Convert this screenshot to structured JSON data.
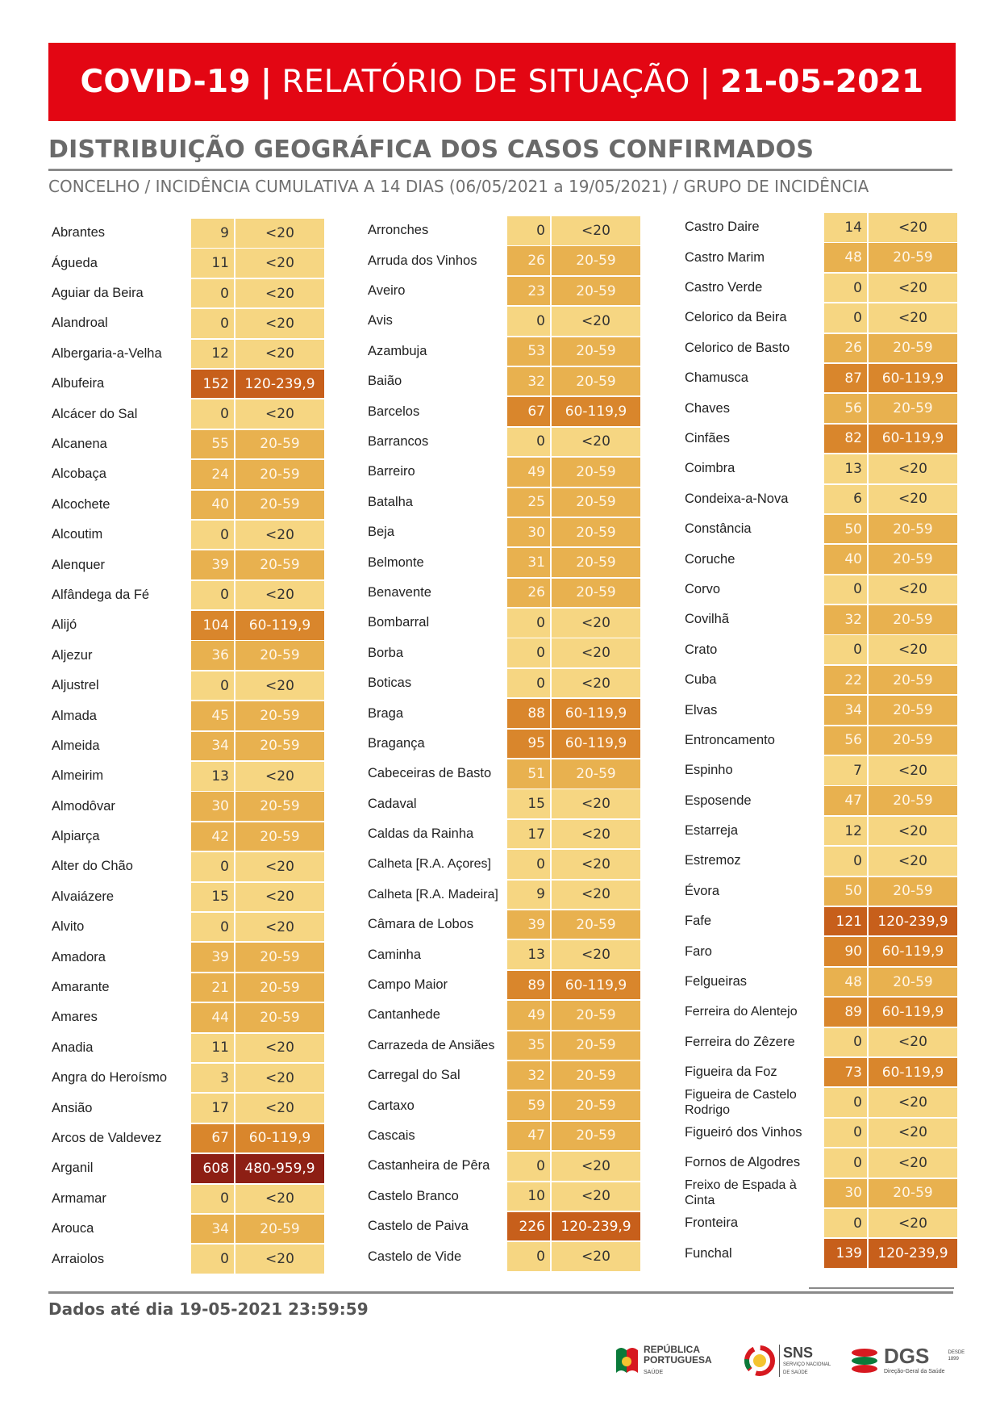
{
  "header": {
    "covid": "COVID-19",
    "sep1": "|",
    "report": "RELATÓRIO DE SITUAÇÃO",
    "sep2": "|",
    "date": "21-05-2021"
  },
  "section_title": "DISTRIBUIÇÃO GEOGRÁFICA DOS CASOS CONFIRMADOS",
  "subtitle": "CONCELHO / INCIDÊNCIA CUMULATIVA A 14 DIAS (06/05/2021 a 19/05/2021) / GRUPO DE INCIDÊNCIA",
  "group_colors": {
    "<20": "#f6d682",
    "20-59": "#e8b14f",
    "60-119,9": "#d9862c",
    "120-239,9": "#c75f1b",
    "480-959,9": "#8d1f14"
  },
  "columns": [
    [
      {
        "name": "Abrantes",
        "value": "9",
        "group": "<20"
      },
      {
        "name": "Águeda",
        "value": "11",
        "group": "<20"
      },
      {
        "name": "Aguiar da Beira",
        "value": "0",
        "group": "<20"
      },
      {
        "name": "Alandroal",
        "value": "0",
        "group": "<20"
      },
      {
        "name": "Albergaria-a-Velha",
        "value": "12",
        "group": "<20"
      },
      {
        "name": "Albufeira",
        "value": "152",
        "group": "120-239,9"
      },
      {
        "name": "Alcácer do Sal",
        "value": "0",
        "group": "<20"
      },
      {
        "name": "Alcanena",
        "value": "55",
        "group": "20-59"
      },
      {
        "name": "Alcobaça",
        "value": "24",
        "group": "20-59"
      },
      {
        "name": "Alcochete",
        "value": "40",
        "group": "20-59"
      },
      {
        "name": "Alcoutim",
        "value": "0",
        "group": "<20"
      },
      {
        "name": "Alenquer",
        "value": "39",
        "group": "20-59"
      },
      {
        "name": "Alfândega da Fé",
        "value": "0",
        "group": "<20"
      },
      {
        "name": "Alijó",
        "value": "104",
        "group": "60-119,9"
      },
      {
        "name": "Aljezur",
        "value": "36",
        "group": "20-59"
      },
      {
        "name": "Aljustrel",
        "value": "0",
        "group": "<20"
      },
      {
        "name": "Almada",
        "value": "45",
        "group": "20-59"
      },
      {
        "name": "Almeida",
        "value": "34",
        "group": "20-59"
      },
      {
        "name": "Almeirim",
        "value": "13",
        "group": "<20"
      },
      {
        "name": "Almodôvar",
        "value": "30",
        "group": "20-59"
      },
      {
        "name": "Alpiarça",
        "value": "42",
        "group": "20-59"
      },
      {
        "name": "Alter do Chão",
        "value": "0",
        "group": "<20"
      },
      {
        "name": "Alvaiázere",
        "value": "15",
        "group": "<20"
      },
      {
        "name": "Alvito",
        "value": "0",
        "group": "<20"
      },
      {
        "name": "Amadora",
        "value": "39",
        "group": "20-59"
      },
      {
        "name": "Amarante",
        "value": "21",
        "group": "20-59"
      },
      {
        "name": "Amares",
        "value": "44",
        "group": "20-59"
      },
      {
        "name": "Anadia",
        "value": "11",
        "group": "<20"
      },
      {
        "name": "Angra do Heroísmo",
        "value": "3",
        "group": "<20"
      },
      {
        "name": "Ansião",
        "value": "17",
        "group": "<20"
      },
      {
        "name": "Arcos de Valdevez",
        "value": "67",
        "group": "60-119,9"
      },
      {
        "name": "Arganil",
        "value": "608",
        "group": "480-959,9"
      },
      {
        "name": "Armamar",
        "value": "0",
        "group": "<20"
      },
      {
        "name": "Arouca",
        "value": "34",
        "group": "20-59"
      },
      {
        "name": "Arraiolos",
        "value": "0",
        "group": "<20"
      }
    ],
    [
      {
        "name": "Arronches",
        "value": "0",
        "group": "<20"
      },
      {
        "name": "Arruda dos Vinhos",
        "value": "26",
        "group": "20-59"
      },
      {
        "name": "Aveiro",
        "value": "23",
        "group": "20-59"
      },
      {
        "name": "Avis",
        "value": "0",
        "group": "<20"
      },
      {
        "name": "Azambuja",
        "value": "53",
        "group": "20-59"
      },
      {
        "name": "Baião",
        "value": "32",
        "group": "20-59"
      },
      {
        "name": "Barcelos",
        "value": "67",
        "group": "60-119,9"
      },
      {
        "name": "Barrancos",
        "value": "0",
        "group": "<20"
      },
      {
        "name": "Barreiro",
        "value": "49",
        "group": "20-59"
      },
      {
        "name": "Batalha",
        "value": "25",
        "group": "20-59"
      },
      {
        "name": "Beja",
        "value": "30",
        "group": "20-59"
      },
      {
        "name": "Belmonte",
        "value": "31",
        "group": "20-59"
      },
      {
        "name": "Benavente",
        "value": "26",
        "group": "20-59"
      },
      {
        "name": "Bombarral",
        "value": "0",
        "group": "<20"
      },
      {
        "name": "Borba",
        "value": "0",
        "group": "<20"
      },
      {
        "name": "Boticas",
        "value": "0",
        "group": "<20"
      },
      {
        "name": "Braga",
        "value": "88",
        "group": "60-119,9"
      },
      {
        "name": "Bragança",
        "value": "95",
        "group": "60-119,9"
      },
      {
        "name": "Cabeceiras de Basto",
        "value": "51",
        "group": "20-59"
      },
      {
        "name": "Cadaval",
        "value": "15",
        "group": "<20"
      },
      {
        "name": "Caldas da Rainha",
        "value": "17",
        "group": "<20"
      },
      {
        "name": "Calheta [R.A. Açores]",
        "value": "0",
        "group": "<20"
      },
      {
        "name": "Calheta [R.A. Madeira]",
        "value": "9",
        "group": "<20"
      },
      {
        "name": "Câmara de Lobos",
        "value": "39",
        "group": "20-59"
      },
      {
        "name": "Caminha",
        "value": "13",
        "group": "<20"
      },
      {
        "name": "Campo Maior",
        "value": "89",
        "group": "60-119,9"
      },
      {
        "name": "Cantanhede",
        "value": "49",
        "group": "20-59"
      },
      {
        "name": "Carrazeda de Ansiães",
        "value": "35",
        "group": "20-59"
      },
      {
        "name": "Carregal do Sal",
        "value": "32",
        "group": "20-59"
      },
      {
        "name": "Cartaxo",
        "value": "59",
        "group": "20-59"
      },
      {
        "name": "Cascais",
        "value": "47",
        "group": "20-59"
      },
      {
        "name": "Castanheira de Pêra",
        "value": "0",
        "group": "<20"
      },
      {
        "name": "Castelo Branco",
        "value": "10",
        "group": "<20"
      },
      {
        "name": "Castelo de Paiva",
        "value": "226",
        "group": "120-239,9"
      },
      {
        "name": "Castelo de Vide",
        "value": "0",
        "group": "<20"
      }
    ],
    [
      {
        "name": "Castro Daire",
        "value": "14",
        "group": "<20"
      },
      {
        "name": "Castro Marim",
        "value": "48",
        "group": "20-59"
      },
      {
        "name": "Castro Verde",
        "value": "0",
        "group": "<20"
      },
      {
        "name": "Celorico da Beira",
        "value": "0",
        "group": "<20"
      },
      {
        "name": "Celorico de Basto",
        "value": "26",
        "group": "20-59"
      },
      {
        "name": "Chamusca",
        "value": "87",
        "group": "60-119,9"
      },
      {
        "name": "Chaves",
        "value": "56",
        "group": "20-59"
      },
      {
        "name": "Cinfães",
        "value": "82",
        "group": "60-119,9"
      },
      {
        "name": "Coimbra",
        "value": "13",
        "group": "<20"
      },
      {
        "name": "Condeixa-a-Nova",
        "value": "6",
        "group": "<20"
      },
      {
        "name": "Constância",
        "value": "50",
        "group": "20-59"
      },
      {
        "name": "Coruche",
        "value": "40",
        "group": "20-59"
      },
      {
        "name": "Corvo",
        "value": "0",
        "group": "<20"
      },
      {
        "name": "Covilhã",
        "value": "32",
        "group": "20-59"
      },
      {
        "name": "Crato",
        "value": "0",
        "group": "<20"
      },
      {
        "name": "Cuba",
        "value": "22",
        "group": "20-59"
      },
      {
        "name": "Elvas",
        "value": "34",
        "group": "20-59"
      },
      {
        "name": "Entroncamento",
        "value": "56",
        "group": "20-59"
      },
      {
        "name": "Espinho",
        "value": "7",
        "group": "<20"
      },
      {
        "name": "Esposende",
        "value": "47",
        "group": "20-59"
      },
      {
        "name": "Estarreja",
        "value": "12",
        "group": "<20"
      },
      {
        "name": "Estremoz",
        "value": "0",
        "group": "<20"
      },
      {
        "name": "Évora",
        "value": "50",
        "group": "20-59"
      },
      {
        "name": "Fafe",
        "value": "121",
        "group": "120-239,9"
      },
      {
        "name": "Faro",
        "value": "90",
        "group": "60-119,9"
      },
      {
        "name": "Felgueiras",
        "value": "48",
        "group": "20-59"
      },
      {
        "name": "Ferreira do Alentejo",
        "value": "89",
        "group": "60-119,9"
      },
      {
        "name": "Ferreira do Zêzere",
        "value": "0",
        "group": "<20"
      },
      {
        "name": "Figueira da Foz",
        "value": "73",
        "group": "60-119,9"
      },
      {
        "name": "Figueira de Castelo Rodrigo",
        "value": "0",
        "group": "<20"
      },
      {
        "name": "Figueiró dos Vinhos",
        "value": "0",
        "group": "<20"
      },
      {
        "name": "Fornos de Algodres",
        "value": "0",
        "group": "<20"
      },
      {
        "name": "Freixo de Espada à Cinta",
        "value": "30",
        "group": "20-59"
      },
      {
        "name": "Fronteira",
        "value": "0",
        "group": "<20"
      },
      {
        "name": "Funchal",
        "value": "139",
        "group": "120-239,9"
      }
    ]
  ],
  "footer": {
    "data_note": "Dados até dia 19-05-2021 23:59:59"
  },
  "logos": {
    "republica_line1": "REPÚBLICA",
    "republica_line2": "PORTUGUESA",
    "republica_line3": "SAÚDE",
    "sns": "SNS",
    "sns_sub1": "SERVIÇO NACIONAL",
    "sns_sub2": "DE SAÚDE",
    "dgs": "DGS",
    "dgs_sub": "Direção-Geral da Saúde",
    "dgs_since1": "DESDE",
    "dgs_since2": "1899"
  }
}
